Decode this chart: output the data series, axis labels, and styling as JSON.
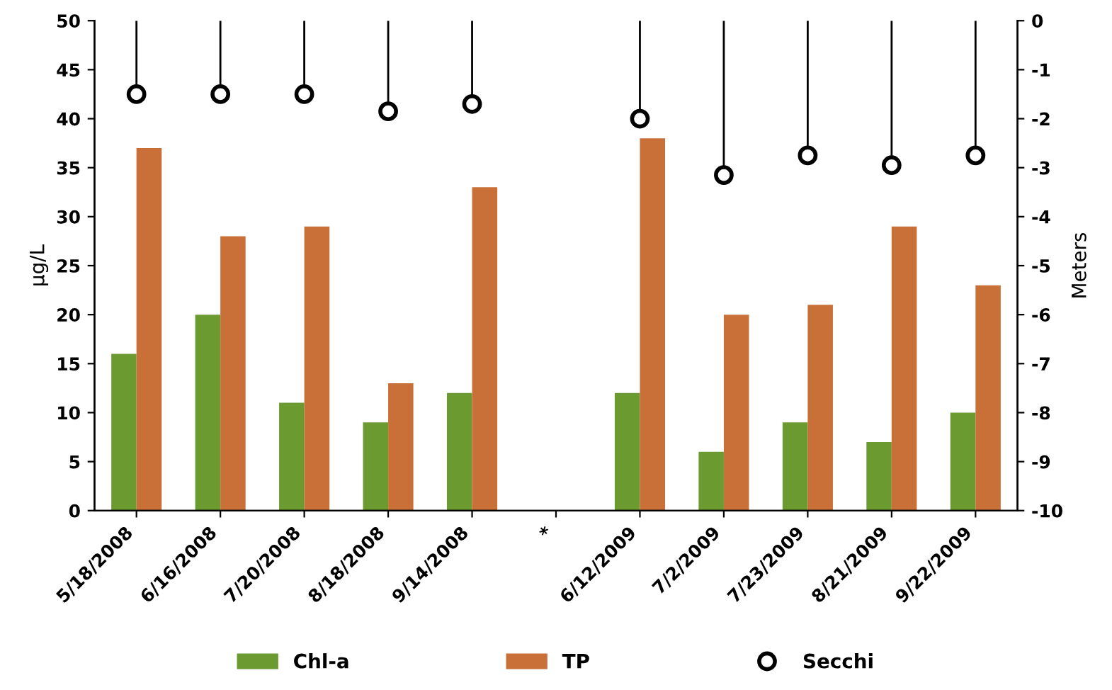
{
  "chart_data": {
    "type": "bar",
    "ylabel": "µg/L",
    "y2label": "Meters",
    "categories": [
      "5/18/2008",
      "6/16/2008",
      "7/20/2008",
      "8/18/2008",
      "9/14/2008",
      "*",
      "6/12/2009",
      "7/2/2009",
      "7/23/2009",
      "8/21/2009",
      "9/22/2009"
    ],
    "series": [
      {
        "name": "Chl-a",
        "color": "#6b9a30",
        "values": [
          16,
          20,
          11,
          9,
          12,
          null,
          12,
          6,
          9,
          7,
          10
        ]
      },
      {
        "name": "TP",
        "color": "#c87038",
        "values": [
          37,
          28,
          29,
          13,
          33,
          null,
          38,
          20,
          21,
          29,
          23
        ]
      },
      {
        "name": "Secchi",
        "type": "lollipop",
        "axis": "y2",
        "color": "#000000",
        "marker": "circle",
        "values": [
          -1.5,
          -1.5,
          -1.5,
          -1.85,
          -1.7,
          null,
          -2.0,
          -3.15,
          -2.75,
          -2.95,
          -2.75
        ]
      }
    ],
    "ylim": [
      0,
      50
    ],
    "yticks": [
      0,
      5,
      10,
      15,
      20,
      25,
      30,
      35,
      40,
      45,
      50
    ],
    "y2lim": [
      -10,
      0
    ],
    "y2ticks": [
      -10,
      -9,
      -8,
      -7,
      -6,
      -5,
      -4,
      -3,
      -2,
      -1,
      0
    ],
    "grid": false,
    "legend": "bottom"
  }
}
